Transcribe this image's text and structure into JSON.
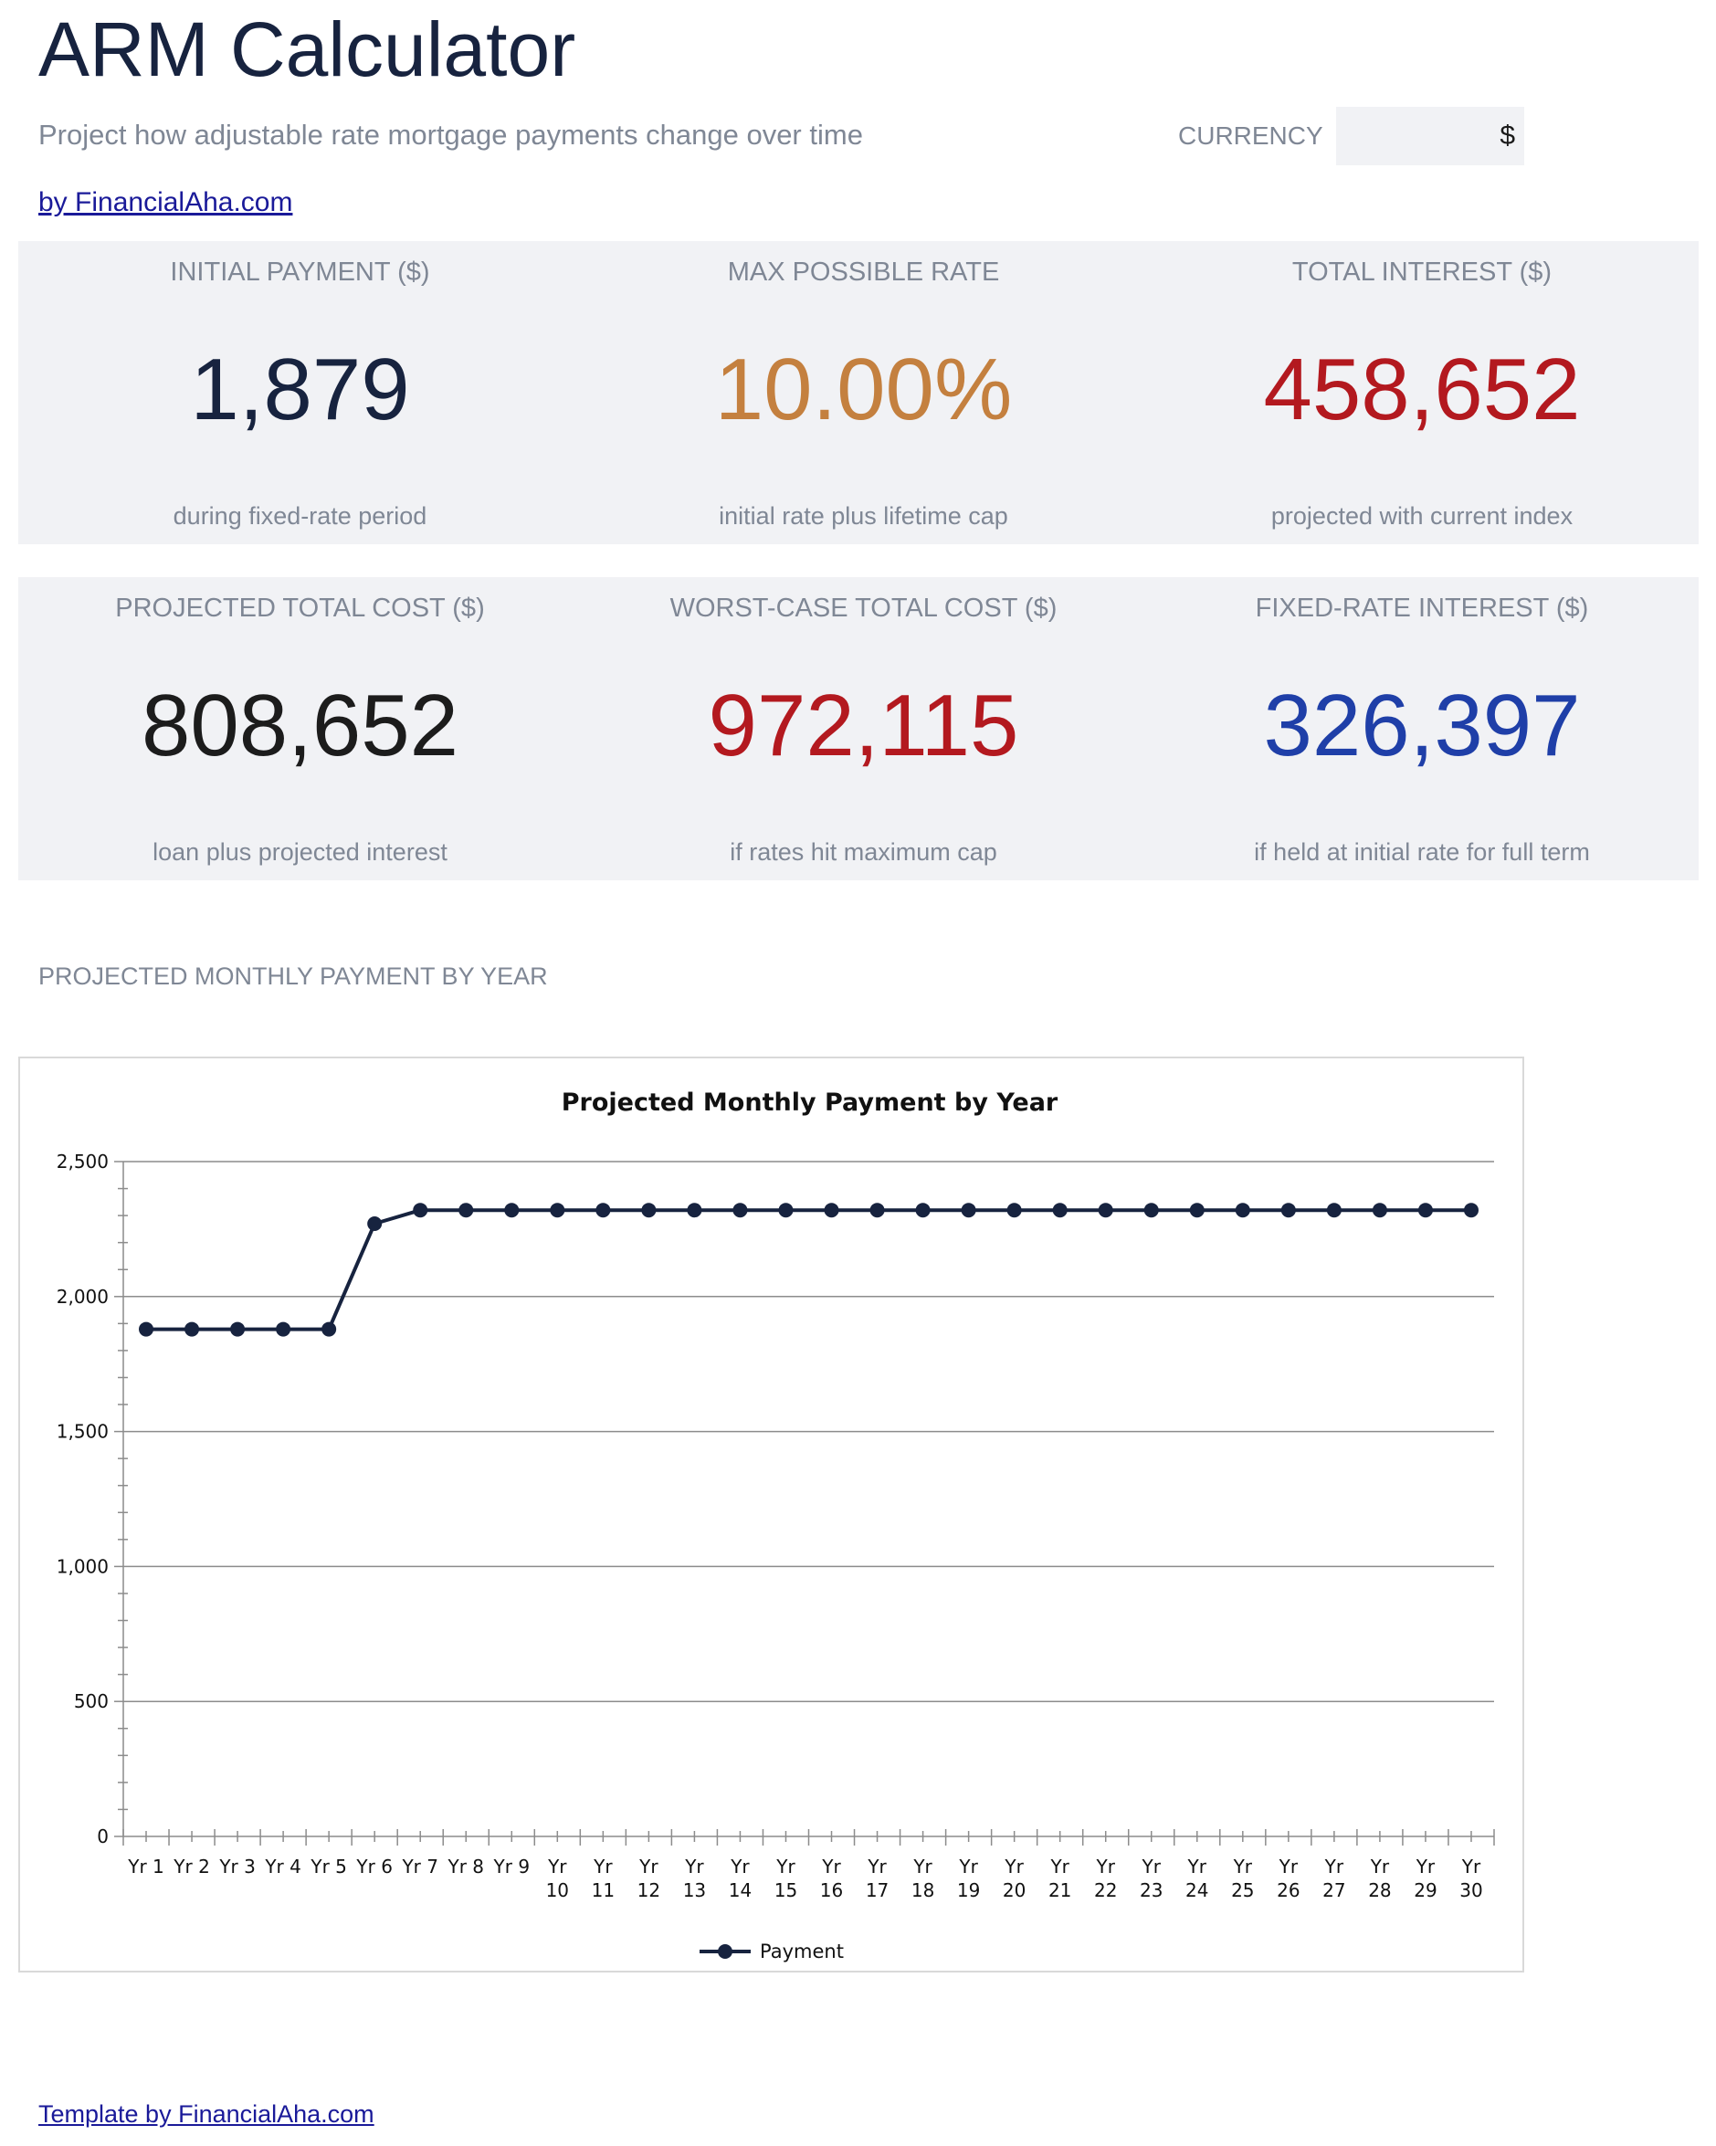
{
  "header": {
    "title": "ARM Calculator",
    "subtitle": "Project how adjustable rate mortgage payments change over time",
    "byline_link": "by FinancialAha.com"
  },
  "currency": {
    "label": "CURRENCY",
    "value": "$"
  },
  "kpis": [
    {
      "label": "INITIAL PAYMENT ($)",
      "value": "1,879",
      "note": "during fixed-rate period",
      "color": "#17233f"
    },
    {
      "label": "MAX POSSIBLE RATE",
      "value": "10.00%",
      "note": "initial rate plus lifetime cap",
      "color": "#c4803f"
    },
    {
      "label": "TOTAL INTEREST ($)",
      "value": "458,652",
      "note": "projected with current index",
      "color": "#b3191f"
    },
    {
      "label": "PROJECTED TOTAL COST ($)",
      "value": "808,652",
      "note": "loan plus projected interest",
      "color": "#1c1c1c"
    },
    {
      "label": "WORST-CASE TOTAL COST ($)",
      "value": "972,115",
      "note": "if rates hit maximum cap",
      "color": "#b3191f"
    },
    {
      "label": "FIXED-RATE INTEREST ($)",
      "value": "326,397",
      "note": "if held at initial rate for full term",
      "color": "#1f3fa8"
    }
  ],
  "section": {
    "chart_heading": "PROJECTED MONTHLY PAYMENT BY YEAR"
  },
  "chart_data": {
    "type": "line",
    "title": "Projected Monthly Payment by Year",
    "xlabel": "",
    "ylabel": "",
    "ylim": [
      0,
      2500
    ],
    "yticks": [
      0,
      500,
      1000,
      1500,
      2000,
      2500
    ],
    "ytick_labels": [
      "0",
      "500",
      "1,000",
      "1,500",
      "2,000",
      "2,500"
    ],
    "categories": [
      "Yr 1",
      "Yr 2",
      "Yr 3",
      "Yr 4",
      "Yr 5",
      "Yr 6",
      "Yr 7",
      "Yr 8",
      "Yr 9",
      "Yr 10",
      "Yr 11",
      "Yr 12",
      "Yr 13",
      "Yr 14",
      "Yr 15",
      "Yr 16",
      "Yr 17",
      "Yr 18",
      "Yr 19",
      "Yr 20",
      "Yr 21",
      "Yr 22",
      "Yr 23",
      "Yr 24",
      "Yr 25",
      "Yr 26",
      "Yr 27",
      "Yr 28",
      "Yr 29",
      "Yr 30"
    ],
    "series": [
      {
        "name": "Payment",
        "color": "#17233f",
        "values": [
          1879,
          1879,
          1879,
          1879,
          1879,
          2270,
          2320,
          2320,
          2320,
          2320,
          2320,
          2320,
          2320,
          2320,
          2320,
          2320,
          2320,
          2320,
          2320,
          2320,
          2320,
          2320,
          2320,
          2320,
          2320,
          2320,
          2320,
          2320,
          2320,
          2320
        ]
      }
    ],
    "grid": true,
    "legend": "bottom"
  },
  "footer": {
    "link": "Template by FinancialAha.com"
  }
}
